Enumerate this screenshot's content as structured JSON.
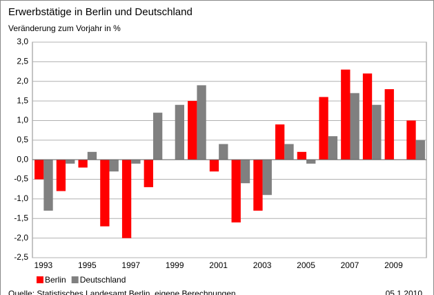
{
  "chart_data": {
    "type": "bar",
    "title": "Erwerbstätige in Berlin und Deutschland",
    "subtitle": "Veränderung zum Vorjahr in %",
    "categories": [
      "1993",
      null,
      "1995",
      null,
      "1997",
      null,
      "1999",
      null,
      "2001",
      null,
      "2003",
      null,
      "2005",
      null,
      "2007",
      null,
      "2009",
      null
    ],
    "series": [
      {
        "name": "Berlin",
        "color": "#ff0000",
        "values": [
          -0.5,
          -0.8,
          -0.2,
          -1.7,
          -2.0,
          -0.7,
          0.0,
          1.5,
          -0.3,
          -1.6,
          -1.3,
          0.9,
          0.2,
          1.6,
          2.3,
          2.2,
          1.8,
          1.0
        ]
      },
      {
        "name": "Deutschland",
        "color": "#808080",
        "values": [
          -1.3,
          -0.1,
          0.2,
          -0.3,
          -0.1,
          1.2,
          1.4,
          1.9,
          0.4,
          -0.6,
          -0.9,
          0.4,
          -0.1,
          0.6,
          1.7,
          1.4,
          0.0,
          0.5
        ]
      }
    ],
    "ylim": [
      -2.5,
      3.0
    ],
    "yticks": [
      {
        "value": -2.5,
        "label": "-2,5"
      },
      {
        "value": -2.0,
        "label": "-2,0"
      },
      {
        "value": -1.5,
        "label": "-1,5"
      },
      {
        "value": -1.0,
        "label": "-1,0"
      },
      {
        "value": -0.5,
        "label": "-0,5"
      },
      {
        "value": 0,
        "label": "0,0"
      },
      {
        "value": 0.5,
        "label": "0,5"
      },
      {
        "value": 1.0,
        "label": "1,0"
      },
      {
        "value": 1.5,
        "label": "1,5"
      },
      {
        "value": 2.0,
        "label": "2,0"
      },
      {
        "value": 2.5,
        "label": "2,5"
      },
      {
        "value": 3.0,
        "label": "3,0"
      }
    ],
    "grid": true,
    "legend": "bottom-left",
    "source": "Quelle: Statistisches Landesamt Berlin, eigene Berechnungen",
    "date": "05.1.2010"
  }
}
